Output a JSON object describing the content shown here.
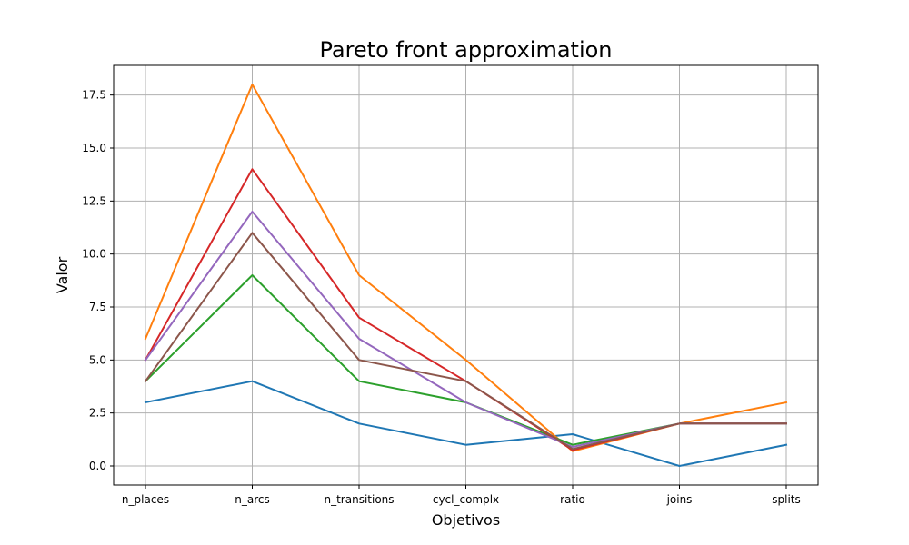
{
  "chart_data": {
    "type": "line",
    "title": "Pareto front approximation",
    "xlabel": "Objetivos",
    "ylabel": "Valor",
    "categories": [
      "n_places",
      "n_arcs",
      "n_transitions",
      "cycl_complx",
      "ratio",
      "joins",
      "splits"
    ],
    "ylim": [
      -0.9,
      18.9
    ],
    "yticks": [
      0.0,
      2.5,
      5.0,
      7.5,
      10.0,
      12.5,
      15.0,
      17.5
    ],
    "ytick_labels": [
      "0.0",
      "2.5",
      "5.0",
      "7.5",
      "10.0",
      "12.5",
      "15.0",
      "17.5"
    ],
    "grid": true,
    "series": [
      {
        "color": "#1f77b4",
        "values": [
          3,
          4,
          2,
          1,
          1.5,
          0,
          1
        ]
      },
      {
        "color": "#ff7f0e",
        "values": [
          6,
          18,
          9,
          5,
          0.7,
          2,
          3
        ]
      },
      {
        "color": "#2ca02c",
        "values": [
          4,
          9,
          4,
          3,
          1.0,
          2,
          2
        ]
      },
      {
        "color": "#d62728",
        "values": [
          5,
          14,
          7,
          4,
          0.75,
          2,
          2
        ]
      },
      {
        "color": "#9467bd",
        "values": [
          5,
          12,
          6,
          3,
          0.9,
          2,
          2
        ]
      },
      {
        "color": "#8c564b",
        "values": [
          4,
          11,
          5,
          4,
          0.8,
          2,
          2
        ]
      }
    ]
  }
}
